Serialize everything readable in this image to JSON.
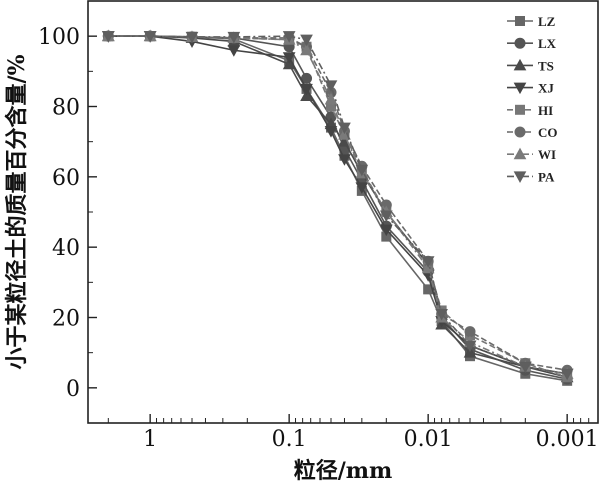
{
  "chart_data": {
    "type": "line",
    "title": "",
    "xlabel": "粒径/mm",
    "ylabel": "小于某粒径土的质量百分含量/%",
    "x_scale": "log-reversed",
    "xlim": [
      2.8,
      0.0006
    ],
    "ylim": [
      -10,
      110
    ],
    "x_ticks": [
      1,
      0.1,
      0.01,
      0.001
    ],
    "x_tick_labels": [
      "1",
      "0.1",
      "0.01",
      "0.001"
    ],
    "y_ticks": [
      0,
      20,
      40,
      60,
      80,
      100
    ],
    "y_tick_labels": [
      "0",
      "20",
      "40",
      "60",
      "80",
      "100"
    ],
    "legend_position": "top-right",
    "grid": false,
    "series": [
      {
        "name": "LZ",
        "marker": "square",
        "dash": "solid",
        "color": "#666666",
        "x": [
          2,
          1,
          0.5,
          0.25,
          0.1,
          0.075,
          0.05,
          0.04,
          0.03,
          0.02,
          0.01,
          0.008,
          0.005,
          0.002,
          0.001
        ],
        "y": [
          100,
          100,
          99.8,
          99.2,
          93,
          85,
          74,
          66,
          56,
          43,
          28,
          19,
          9,
          4,
          2
        ]
      },
      {
        "name": "LX",
        "marker": "circle",
        "dash": "solid",
        "color": "#555555",
        "x": [
          2,
          1,
          0.5,
          0.25,
          0.1,
          0.075,
          0.05,
          0.04,
          0.03,
          0.02,
          0.01,
          0.008,
          0.005,
          0.002,
          0.001
        ],
        "y": [
          100,
          100,
          99.8,
          99.5,
          97,
          88,
          77,
          68,
          59,
          46,
          33,
          20,
          11,
          5,
          2.5
        ]
      },
      {
        "name": "TS",
        "marker": "triangle-up",
        "dash": "solid",
        "color": "#4a4a4a",
        "x": [
          2,
          1,
          0.5,
          0.25,
          0.1,
          0.075,
          0.05,
          0.04,
          0.03,
          0.02,
          0.01,
          0.008,
          0.005,
          0.002,
          0.001
        ],
        "y": [
          100,
          100,
          99.5,
          98.5,
          92,
          83,
          75,
          70,
          61,
          50,
          35,
          18,
          10,
          6,
          3
        ]
      },
      {
        "name": "XJ",
        "marker": "triangle-down",
        "dash": "solid",
        "color": "#444444",
        "x": [
          2,
          1,
          0.5,
          0.25,
          0.1,
          0.075,
          0.05,
          0.04,
          0.03,
          0.02,
          0.01,
          0.008,
          0.005,
          0.002,
          0.001
        ],
        "y": [
          100,
          100,
          98.5,
          96,
          94,
          85,
          73,
          65,
          57,
          45,
          32,
          19,
          12,
          6,
          4
        ]
      },
      {
        "name": "HI",
        "marker": "square",
        "dash": "dashed",
        "color": "#777777",
        "x": [
          2,
          1,
          0.5,
          0.25,
          0.1,
          0.075,
          0.05,
          0.04,
          0.03,
          0.02,
          0.01,
          0.008,
          0.005,
          0.002,
          0.001
        ],
        "y": [
          100,
          100,
          99.8,
          99.5,
          99,
          97,
          80,
          72,
          62,
          50,
          35,
          22,
          15,
          7,
          3
        ]
      },
      {
        "name": "CO",
        "marker": "circle",
        "dash": "dashed",
        "color": "#6a6a6a",
        "x": [
          2,
          1,
          0.5,
          0.25,
          0.1,
          0.075,
          0.05,
          0.04,
          0.03,
          0.02,
          0.01,
          0.008,
          0.005,
          0.002,
          0.001
        ],
        "y": [
          100,
          100,
          99.8,
          99.5,
          99.5,
          97,
          84,
          73,
          63,
          52,
          36,
          21,
          16,
          7,
          5
        ]
      },
      {
        "name": "WI",
        "marker": "triangle-up",
        "dash": "dashdot",
        "color": "#7a7a7a",
        "x": [
          2,
          1,
          0.5,
          0.25,
          0.1,
          0.075,
          0.05,
          0.04,
          0.03,
          0.02,
          0.01,
          0.008,
          0.005,
          0.002,
          0.001
        ],
        "y": [
          100,
          100,
          99.8,
          99.5,
          99,
          96,
          82,
          72,
          61,
          50,
          34,
          20,
          13,
          6,
          4
        ]
      },
      {
        "name": "PA",
        "marker": "triangle-down",
        "dash": "dashdot",
        "color": "#5f5f5f",
        "x": [
          2,
          1,
          0.5,
          0.25,
          0.1,
          0.075,
          0.05,
          0.04,
          0.03,
          0.02,
          0.01,
          0.008,
          0.005,
          0.002,
          0.001
        ],
        "y": [
          100,
          100,
          99.8,
          99.8,
          100,
          99,
          86,
          74,
          62,
          49,
          36,
          21,
          12,
          6,
          4
        ]
      }
    ]
  }
}
